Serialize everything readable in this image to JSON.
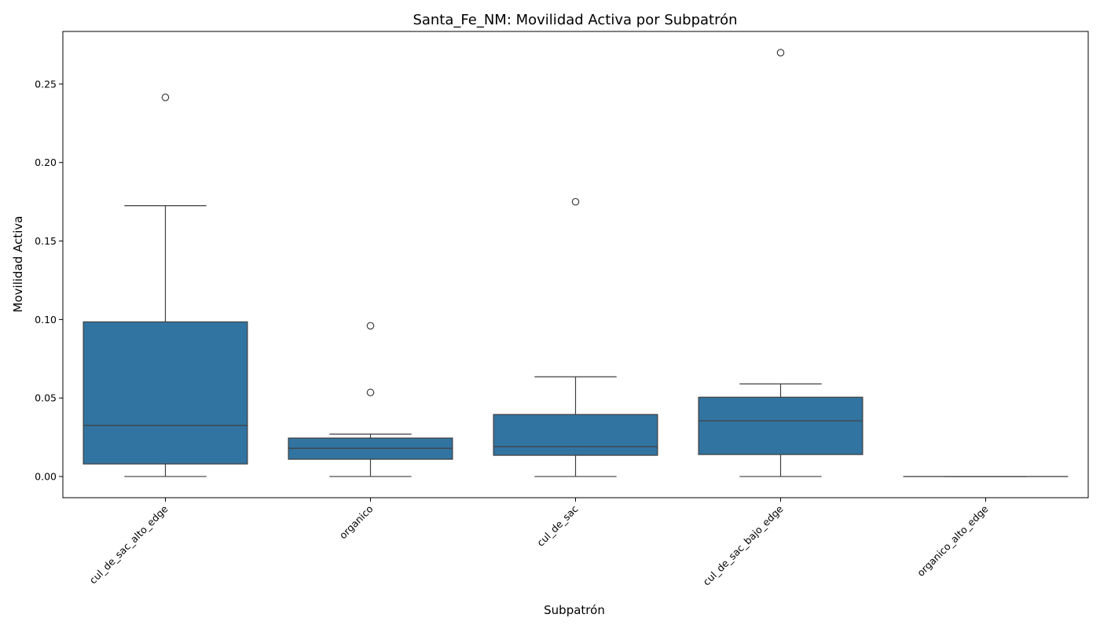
{
  "chart_data": {
    "type": "boxplot",
    "title": "Santa_Fe_NM: Movilidad Activa por Subpatrón",
    "xlabel": "Subpatrón",
    "ylabel": "Movilidad Activa",
    "ylim": [
      -0.0135,
      0.2835
    ],
    "yticks": [
      0.0,
      0.05,
      0.1,
      0.15,
      0.2,
      0.25
    ],
    "ytick_labels": [
      "0.00",
      "0.05",
      "0.10",
      "0.15",
      "0.20",
      "0.25"
    ],
    "grid": false,
    "box_color": "#3274a1",
    "line_color": "#3f3f3f",
    "categories": [
      "cul_de_sac_alto_edge",
      "organico",
      "cul_de_sac",
      "cul_de_sac_bajo_edge",
      "organico_alto_edge"
    ],
    "boxes": [
      {
        "whisker_low": 0.0,
        "q1": 0.008,
        "median": 0.0325,
        "q3": 0.0985,
        "whisker_high": 0.1725,
        "outliers": [
          0.2415
        ]
      },
      {
        "whisker_low": 0.0,
        "q1": 0.011,
        "median": 0.018,
        "q3": 0.0245,
        "whisker_high": 0.027,
        "outliers": [
          0.0535,
          0.096
        ]
      },
      {
        "whisker_low": 0.0,
        "q1": 0.0135,
        "median": 0.019,
        "q3": 0.0395,
        "whisker_high": 0.0635,
        "outliers": [
          0.175
        ]
      },
      {
        "whisker_low": 0.0,
        "q1": 0.014,
        "median": 0.0355,
        "q3": 0.0505,
        "whisker_high": 0.059,
        "outliers": [
          0.27
        ]
      },
      {
        "whisker_low": 0.0,
        "q1": 0.0,
        "median": 0.0,
        "q3": 0.0,
        "whisker_high": 0.0,
        "outliers": []
      }
    ]
  }
}
